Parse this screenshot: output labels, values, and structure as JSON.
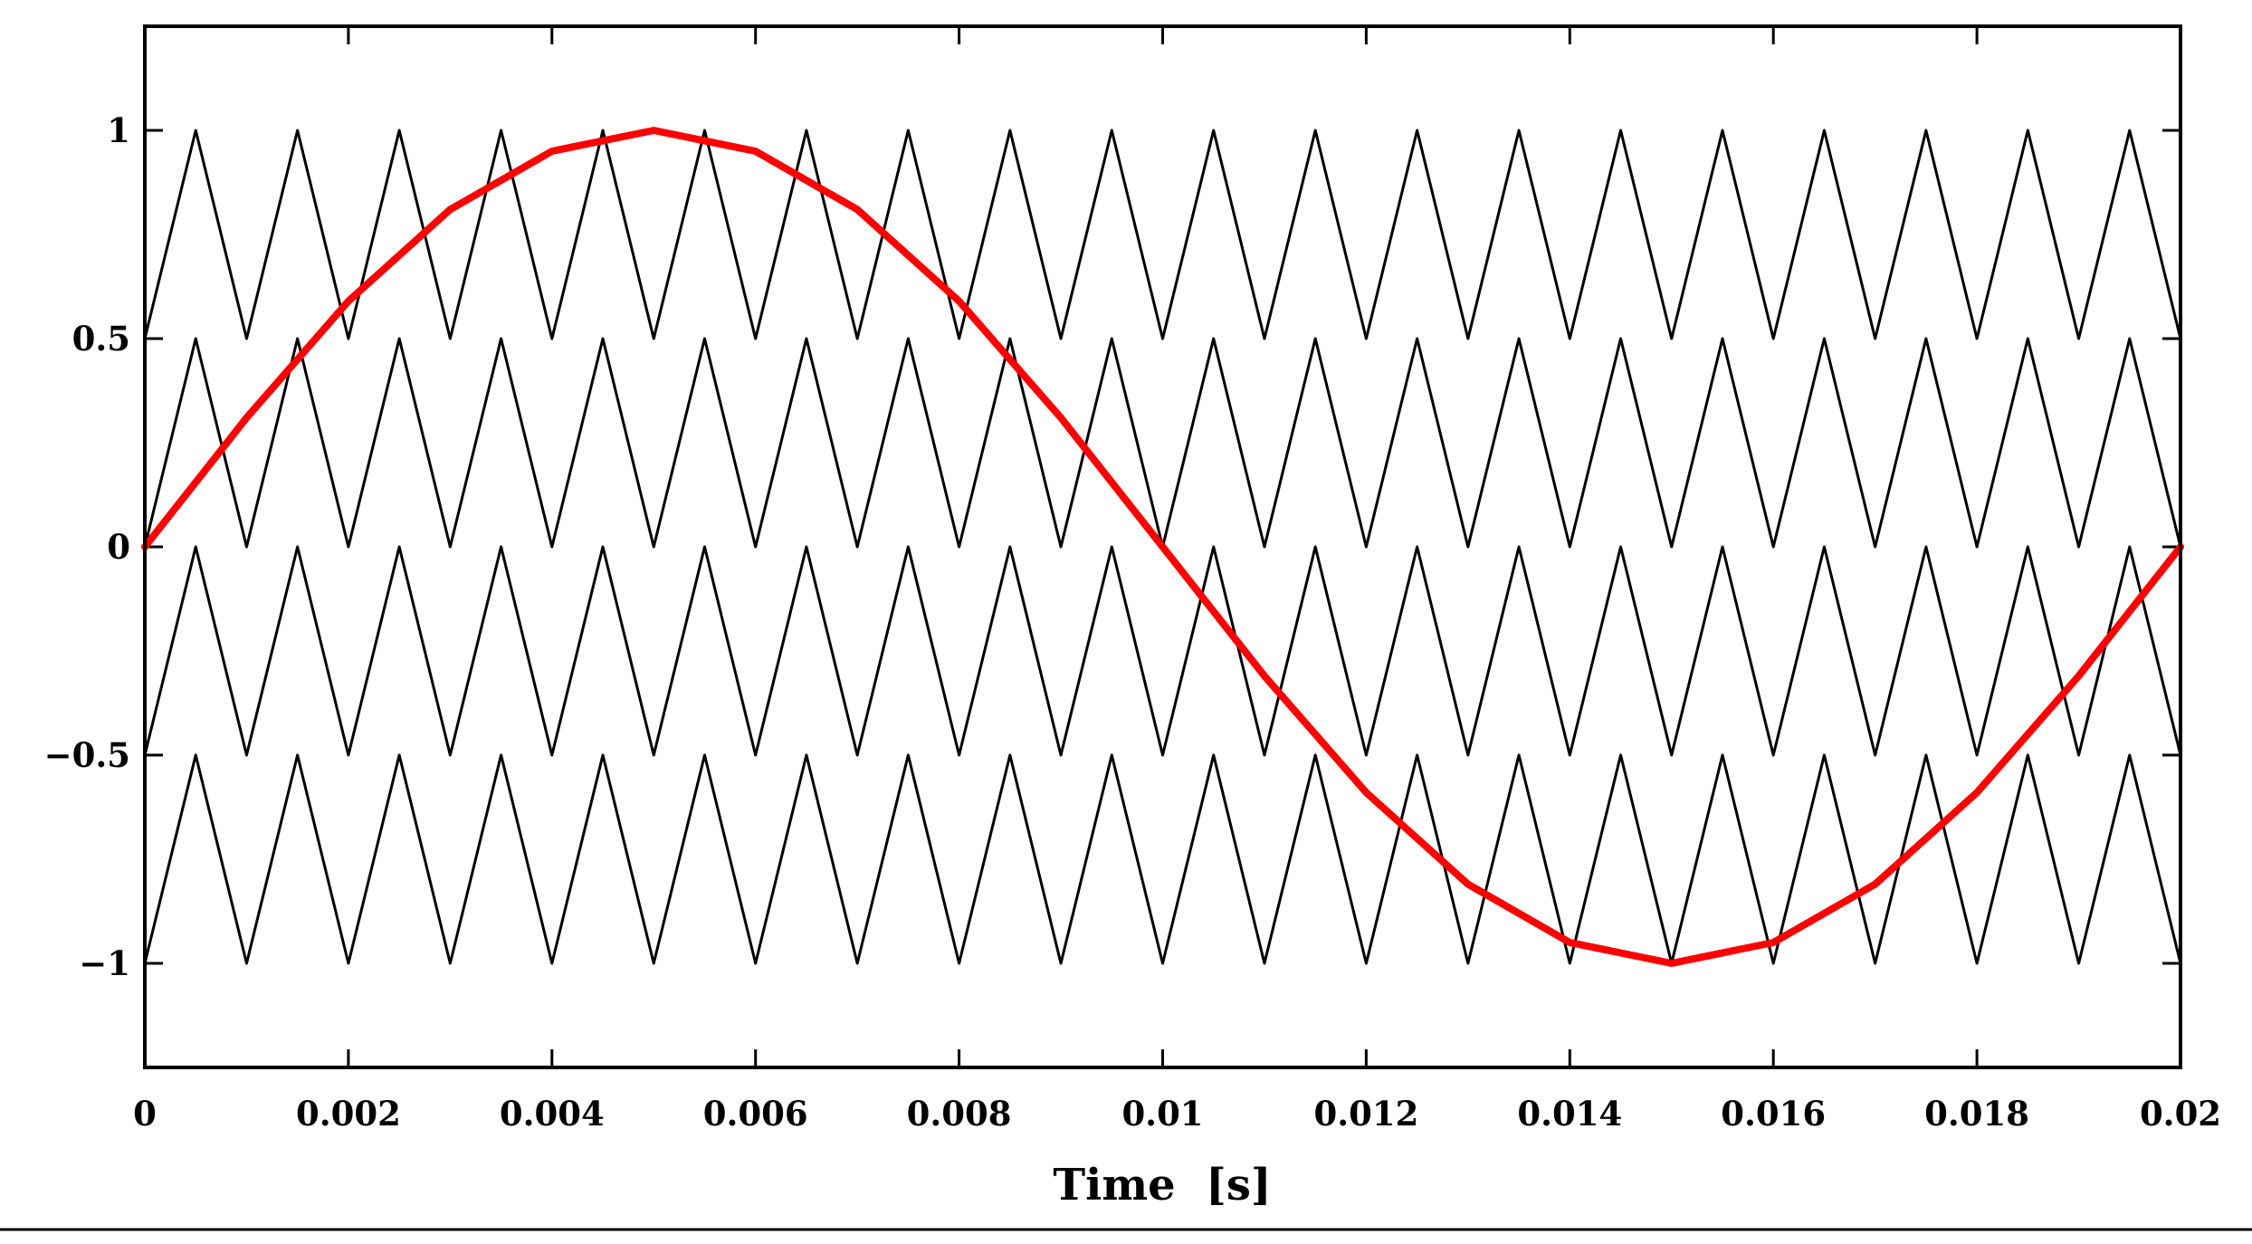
{
  "chart_data": {
    "type": "line",
    "xlabel": "Time  [s]",
    "ylabel": "",
    "xlim": [
      0,
      0.02
    ],
    "ylim": [
      -1.25,
      1.25
    ],
    "grid": false,
    "legend": "none",
    "x_ticks": [
      0,
      0.002,
      0.004,
      0.006,
      0.008,
      0.01,
      0.012,
      0.014,
      0.016,
      0.018,
      0.02
    ],
    "x_tick_labels": [
      "0",
      "0.002",
      "0.004",
      "0.006",
      "0.008",
      "0.01",
      "0.012",
      "0.014",
      "0.016",
      "0.018",
      "0.02"
    ],
    "y_ticks": [
      1,
      0.5,
      0,
      -0.5,
      -1
    ],
    "y_tick_labels": [
      "1",
      "0.5",
      "0",
      "−0.5",
      "−1"
    ],
    "carrier_period": 0.001,
    "series": [
      {
        "color": "#000000",
        "values": {
          "x": [
            0,
            0.0005,
            0.001,
            0.0015,
            0.002,
            0.0025,
            0.003,
            0.0035,
            0.004,
            0.0045,
            0.005,
            0.0055,
            0.006,
            0.0065,
            0.007,
            0.0075,
            0.008,
            0.0085,
            0.009,
            0.0095,
            0.01,
            0.0105,
            0.011,
            0.0115,
            0.012,
            0.0125,
            0.013,
            0.0135,
            0.014,
            0.0145,
            0.015,
            0.0155,
            0.016,
            0.0165,
            0.017,
            0.0175,
            0.018,
            0.0185,
            0.019,
            0.0195,
            0.02
          ],
          "y": [
            0.5,
            1,
            0.5,
            1,
            0.5,
            1,
            0.5,
            1,
            0.5,
            1,
            0.5,
            1,
            0.5,
            1,
            0.5,
            1,
            0.5,
            1,
            0.5,
            1,
            0.5,
            1,
            0.5,
            1,
            0.5,
            1,
            0.5,
            1,
            0.5,
            1,
            0.5,
            1,
            0.5,
            1,
            0.5,
            1,
            0.5,
            1,
            0.5,
            1,
            0.5
          ]
        }
      },
      {
        "color": "#000000",
        "values": {
          "x": [
            0,
            0.0005,
            0.001,
            0.0015,
            0.002,
            0.0025,
            0.003,
            0.0035,
            0.004,
            0.0045,
            0.005,
            0.0055,
            0.006,
            0.0065,
            0.007,
            0.0075,
            0.008,
            0.0085,
            0.009,
            0.0095,
            0.01,
            0.0105,
            0.011,
            0.0115,
            0.012,
            0.0125,
            0.013,
            0.0135,
            0.014,
            0.0145,
            0.015,
            0.0155,
            0.016,
            0.0165,
            0.017,
            0.0175,
            0.018,
            0.0185,
            0.019,
            0.0195,
            0.02
          ],
          "y": [
            0,
            0.5,
            0,
            0.5,
            0,
            0.5,
            0,
            0.5,
            0,
            0.5,
            0,
            0.5,
            0,
            0.5,
            0,
            0.5,
            0,
            0.5,
            0,
            0.5,
            0,
            0.5,
            0,
            0.5,
            0,
            0.5,
            0,
            0.5,
            0,
            0.5,
            0,
            0.5,
            0,
            0.5,
            0,
            0.5,
            0,
            0.5,
            0,
            0.5,
            0
          ]
        }
      },
      {
        "color": "#000000",
        "values": {
          "x": [
            0,
            0.0005,
            0.001,
            0.0015,
            0.002,
            0.0025,
            0.003,
            0.0035,
            0.004,
            0.0045,
            0.005,
            0.0055,
            0.006,
            0.0065,
            0.007,
            0.0075,
            0.008,
            0.0085,
            0.009,
            0.0095,
            0.01,
            0.0105,
            0.011,
            0.0115,
            0.012,
            0.0125,
            0.013,
            0.0135,
            0.014,
            0.0145,
            0.015,
            0.0155,
            0.016,
            0.0165,
            0.017,
            0.0175,
            0.018,
            0.0185,
            0.019,
            0.0195,
            0.02
          ],
          "y": [
            -0.5,
            0,
            -0.5,
            0,
            -0.5,
            0,
            -0.5,
            0,
            -0.5,
            0,
            -0.5,
            0,
            -0.5,
            0,
            -0.5,
            0,
            -0.5,
            0,
            -0.5,
            0,
            -0.5,
            0,
            -0.5,
            0,
            -0.5,
            0,
            -0.5,
            0,
            -0.5,
            0,
            -0.5,
            0,
            -0.5,
            0,
            -0.5,
            0,
            -0.5,
            0,
            -0.5,
            0,
            -0.5
          ]
        }
      },
      {
        "color": "#000000",
        "values": {
          "x": [
            0,
            0.0005,
            0.001,
            0.0015,
            0.002,
            0.0025,
            0.003,
            0.0035,
            0.004,
            0.0045,
            0.005,
            0.0055,
            0.006,
            0.0065,
            0.007,
            0.0075,
            0.008,
            0.0085,
            0.009,
            0.0095,
            0.01,
            0.0105,
            0.011,
            0.0115,
            0.012,
            0.0125,
            0.013,
            0.0135,
            0.014,
            0.0145,
            0.015,
            0.0155,
            0.016,
            0.0165,
            0.017,
            0.0175,
            0.018,
            0.0185,
            0.019,
            0.0195,
            0.02
          ],
          "y": [
            -1,
            -0.5,
            -1,
            -0.5,
            -1,
            -0.5,
            -1,
            -0.5,
            -1,
            -0.5,
            -1,
            -0.5,
            -1,
            -0.5,
            -1,
            -0.5,
            -1,
            -0.5,
            -1,
            -0.5,
            -1,
            -0.5,
            -1,
            -0.5,
            -1,
            -0.5,
            -1,
            -0.5,
            -1,
            -0.5,
            -1,
            -0.5,
            -1,
            -0.5,
            -1,
            -0.5,
            -1,
            -0.5,
            -1,
            -0.5,
            -1
          ]
        }
      },
      {
        "color": "#ff0000",
        "values": {
          "x": [
            0,
            0.001,
            0.002,
            0.003,
            0.004,
            0.005,
            0.006,
            0.007,
            0.008,
            0.009,
            0.01,
            0.011,
            0.012,
            0.013,
            0.014,
            0.015,
            0.016,
            0.017,
            0.018,
            0.019,
            0.02
          ],
          "y": [
            0,
            0.31,
            0.59,
            0.81,
            0.95,
            1,
            0.95,
            0.81,
            0.59,
            0.31,
            0,
            -0.31,
            -0.59,
            -0.81,
            -0.95,
            -1,
            -0.95,
            -0.81,
            -0.59,
            -0.31,
            0
          ]
        }
      }
    ]
  }
}
